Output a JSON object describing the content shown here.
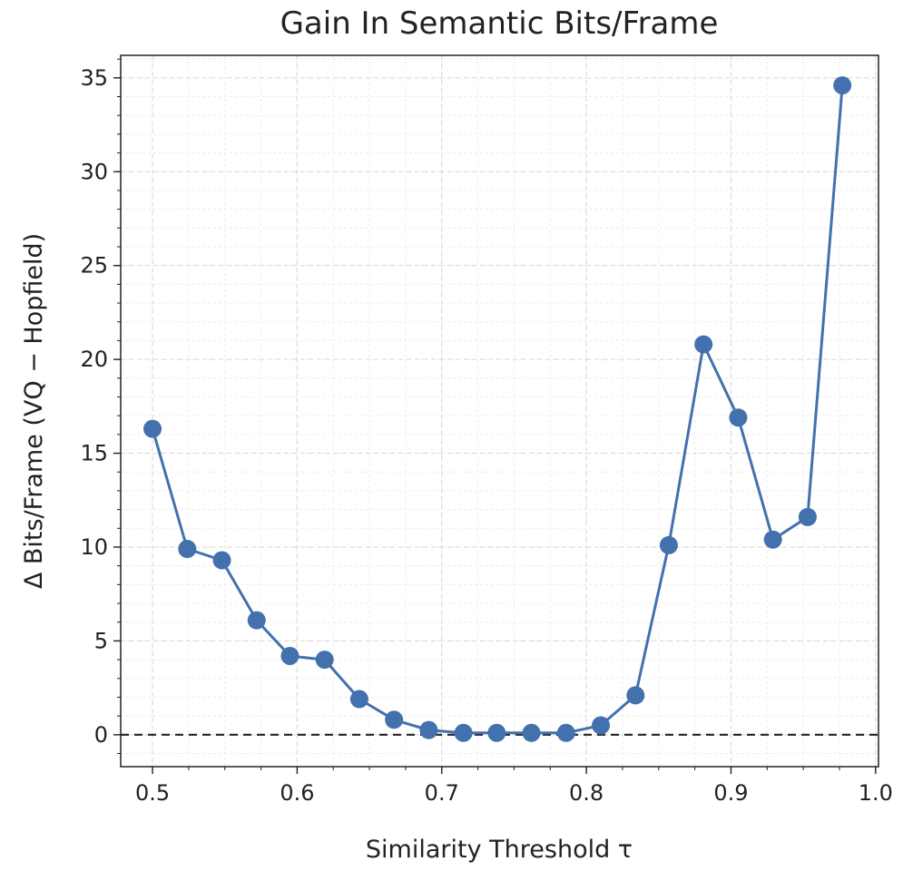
{
  "chart_data": {
    "type": "line",
    "title": "Gain In Semantic Bits/Frame",
    "xlabel": "Similarity Threshold τ",
    "ylabel": "Δ Bits/Frame (VQ − Hopfield)",
    "xlim": [
      0.478,
      1.002
    ],
    "ylim": [
      -1.7,
      36.2
    ],
    "xticks": [
      0.5,
      0.6,
      0.7,
      0.8,
      0.9,
      1.0
    ],
    "xtick_labels": [
      "0.5",
      "0.6",
      "0.7",
      "0.8",
      "0.9",
      "1.0"
    ],
    "yticks": [
      0,
      5,
      10,
      15,
      20,
      25,
      30,
      35
    ],
    "ytick_labels": [
      "0",
      "5",
      "10",
      "15",
      "20",
      "25",
      "30",
      "35"
    ],
    "grid": true,
    "reference_line": {
      "y": 0,
      "style": "dashed",
      "color": "#222222"
    },
    "series": [
      {
        "color": "#4271ae",
        "x": [
          0.5,
          0.524,
          0.548,
          0.572,
          0.595,
          0.619,
          0.643,
          0.667,
          0.691,
          0.715,
          0.738,
          0.762,
          0.786,
          0.81,
          0.834,
          0.857,
          0.881,
          0.905,
          0.929,
          0.953,
          0.977
        ],
        "y": [
          16.3,
          9.9,
          9.3,
          6.1,
          4.2,
          4.0,
          1.9,
          0.8,
          0.25,
          0.1,
          0.1,
          0.1,
          0.1,
          0.5,
          2.1,
          10.1,
          20.8,
          16.9,
          10.4,
          11.6,
          34.6
        ]
      }
    ]
  }
}
